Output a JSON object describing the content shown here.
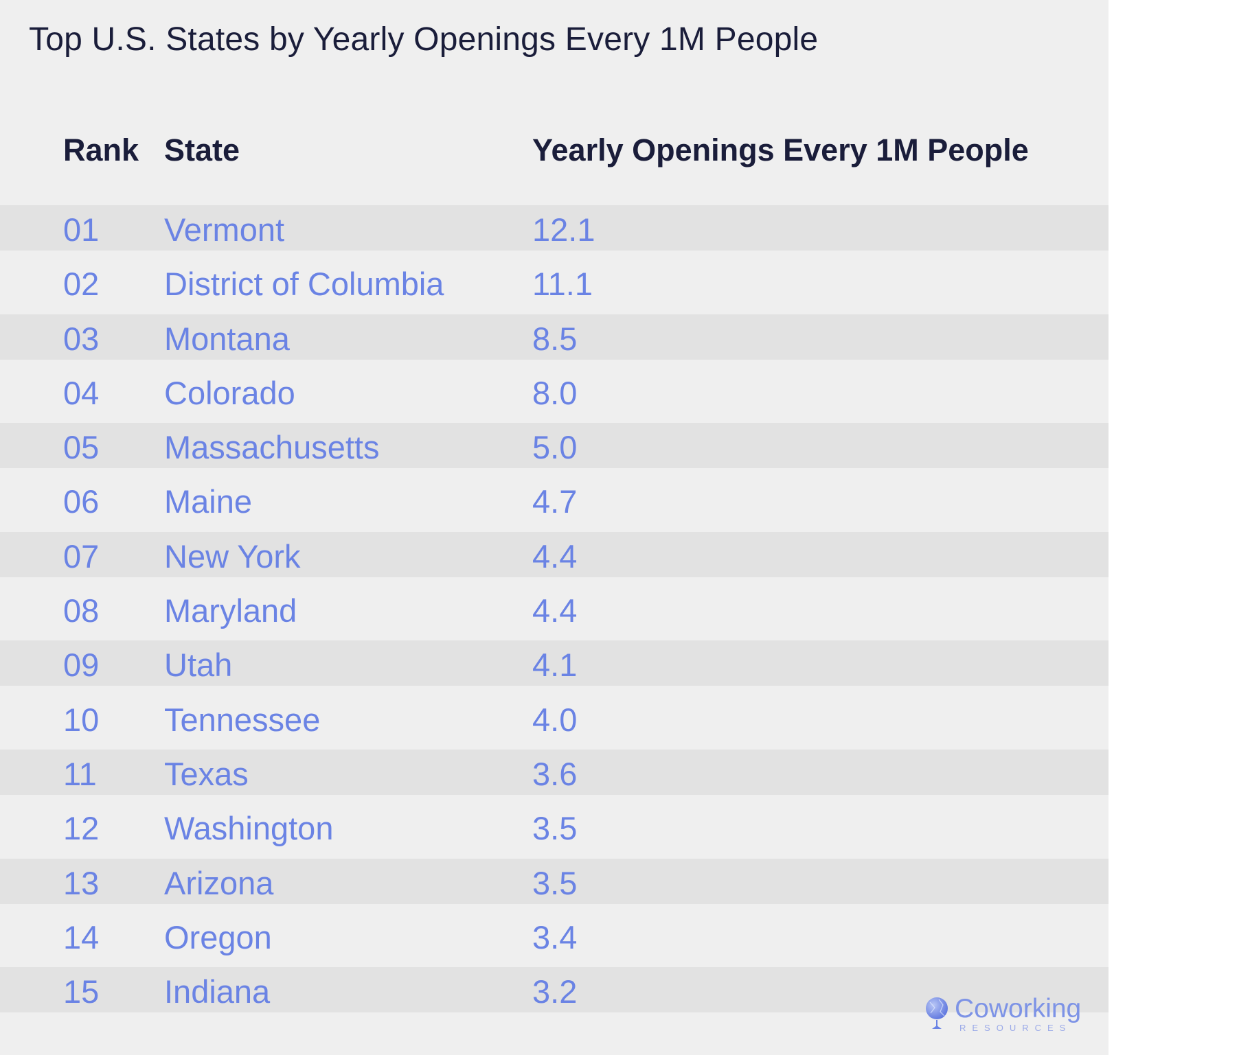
{
  "title": "Top U.S. States by Yearly Openings Every 1M People",
  "columns": {
    "rank": "Rank",
    "state": "State",
    "value": "Yearly Openings Every 1M People"
  },
  "rows": [
    {
      "rank": "01",
      "state": "Vermont",
      "value": "12.1"
    },
    {
      "rank": "02",
      "state": "District of Columbia",
      "value": "11.1"
    },
    {
      "rank": "03",
      "state": "Montana",
      "value": "8.5"
    },
    {
      "rank": "04",
      "state": "Colorado",
      "value": "8.0"
    },
    {
      "rank": "05",
      "state": "Massachusetts",
      "value": "5.0"
    },
    {
      "rank": "06",
      "state": "Maine",
      "value": "4.7"
    },
    {
      "rank": "07",
      "state": "New York",
      "value": "4.4"
    },
    {
      "rank": "08",
      "state": "Maryland",
      "value": "4.4"
    },
    {
      "rank": "09",
      "state": "Utah",
      "value": "4.1"
    },
    {
      "rank": "10",
      "state": "Tennessee",
      "value": "4.0"
    },
    {
      "rank": "11",
      "state": "Texas",
      "value": "3.6"
    },
    {
      "rank": "12",
      "state": "Washington",
      "value": "3.5"
    },
    {
      "rank": "13",
      "state": "Arizona",
      "value": "3.5"
    },
    {
      "rank": "14",
      "state": "Oregon",
      "value": "3.4"
    },
    {
      "rank": "15",
      "state": "Indiana",
      "value": "3.2"
    }
  ],
  "logo": {
    "name": "Coworking",
    "sub": "RESOURCES",
    "icon": "globe-icon"
  },
  "colors": {
    "background": "#efefef",
    "stripe": "#e2e2e2",
    "header_text": "#1a1d3a",
    "row_text": "#6a83e4"
  },
  "chart_data": {
    "type": "table",
    "title": "Top U.S. States by Yearly Openings Every 1M People",
    "columns": [
      "Rank",
      "State",
      "Yearly Openings Every 1M People"
    ],
    "categories": [
      "Vermont",
      "District of Columbia",
      "Montana",
      "Colorado",
      "Massachusetts",
      "Maine",
      "New York",
      "Maryland",
      "Utah",
      "Tennessee",
      "Texas",
      "Washington",
      "Arizona",
      "Oregon",
      "Indiana"
    ],
    "ranks": [
      "01",
      "02",
      "03",
      "04",
      "05",
      "06",
      "07",
      "08",
      "09",
      "10",
      "11",
      "12",
      "13",
      "14",
      "15"
    ],
    "values": [
      12.1,
      11.1,
      8.5,
      8.0,
      5.0,
      4.7,
      4.4,
      4.4,
      4.1,
      4.0,
      3.6,
      3.5,
      3.5,
      3.4,
      3.2
    ]
  }
}
